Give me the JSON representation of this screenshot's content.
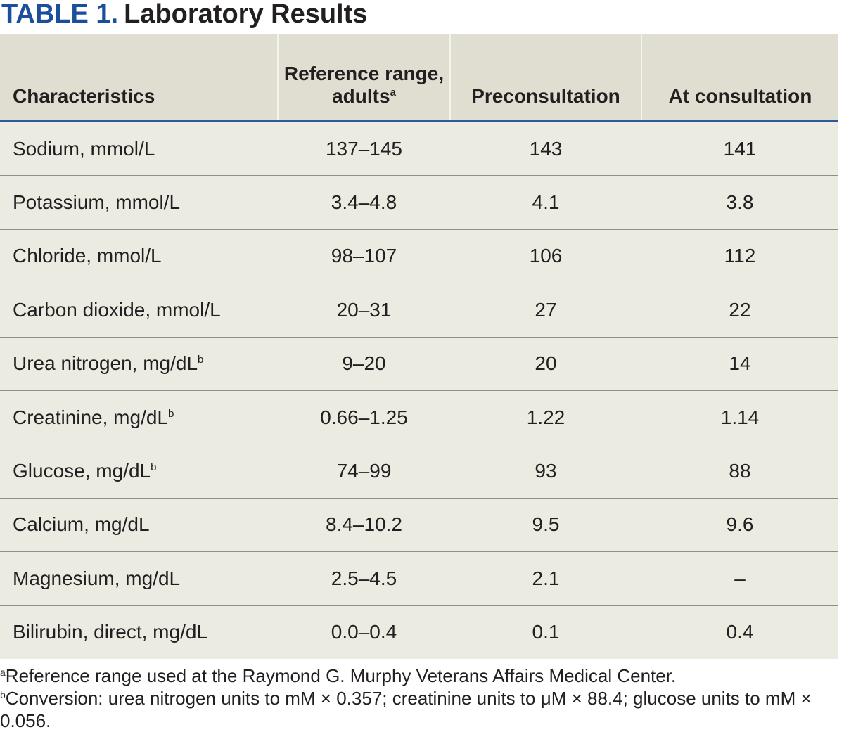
{
  "title": {
    "label": "TABLE 1.",
    "text": "Laboratory Results"
  },
  "table": {
    "header": [
      {
        "text": "Characteristics"
      },
      {
        "text": "Reference range, adults",
        "sup": "a"
      },
      {
        "text": "Preconsultation"
      },
      {
        "text": "At consultation"
      }
    ],
    "rows": [
      [
        {
          "text": "Sodium, mmol/L"
        },
        {
          "text": "137–145"
        },
        {
          "text": "143"
        },
        {
          "text": "141"
        }
      ],
      [
        {
          "text": "Potassium, mmol/L"
        },
        {
          "text": "3.4–4.8"
        },
        {
          "text": "4.1"
        },
        {
          "text": "3.8"
        }
      ],
      [
        {
          "text": "Chloride, mmol/L"
        },
        {
          "text": "98–107"
        },
        {
          "text": "106"
        },
        {
          "text": "112"
        }
      ],
      [
        {
          "text": "Carbon dioxide, mmol/L"
        },
        {
          "text": "20–31"
        },
        {
          "text": "27"
        },
        {
          "text": "22"
        }
      ],
      [
        {
          "text": "Urea nitrogen, mg/dL",
          "sup": "b"
        },
        {
          "text": "9–20"
        },
        {
          "text": "20"
        },
        {
          "text": "14"
        }
      ],
      [
        {
          "text": "Creatinine, mg/dL",
          "sup": "b"
        },
        {
          "text": "0.66–1.25"
        },
        {
          "text": "1.22"
        },
        {
          "text": "1.14"
        }
      ],
      [
        {
          "text": "Glucose, mg/dL",
          "sup": "b"
        },
        {
          "text": "74–99"
        },
        {
          "text": "93"
        },
        {
          "text": "88"
        }
      ],
      [
        {
          "text": "Calcium, mg/dL"
        },
        {
          "text": "8.4–10.2"
        },
        {
          "text": "9.5"
        },
        {
          "text": "9.6"
        }
      ],
      [
        {
          "text": "Magnesium, mg/dL"
        },
        {
          "text": "2.5–4.5"
        },
        {
          "text": "2.1"
        },
        {
          "text": "–"
        }
      ],
      [
        {
          "text": "Bilirubin, direct, mg/dL"
        },
        {
          "text": "0.0–0.4"
        },
        {
          "text": "0.1"
        },
        {
          "text": "0.4"
        }
      ]
    ]
  },
  "footnotes": [
    {
      "mark": "a",
      "text": "Reference range used at the Raymond G. Murphy Veterans Affairs Medical Center."
    },
    {
      "mark": "b",
      "text": "Conversion: urea nitrogen units to mM × 0.357; creatinine units to μM × 88.4; glucose units to mM × 0.056."
    }
  ]
}
